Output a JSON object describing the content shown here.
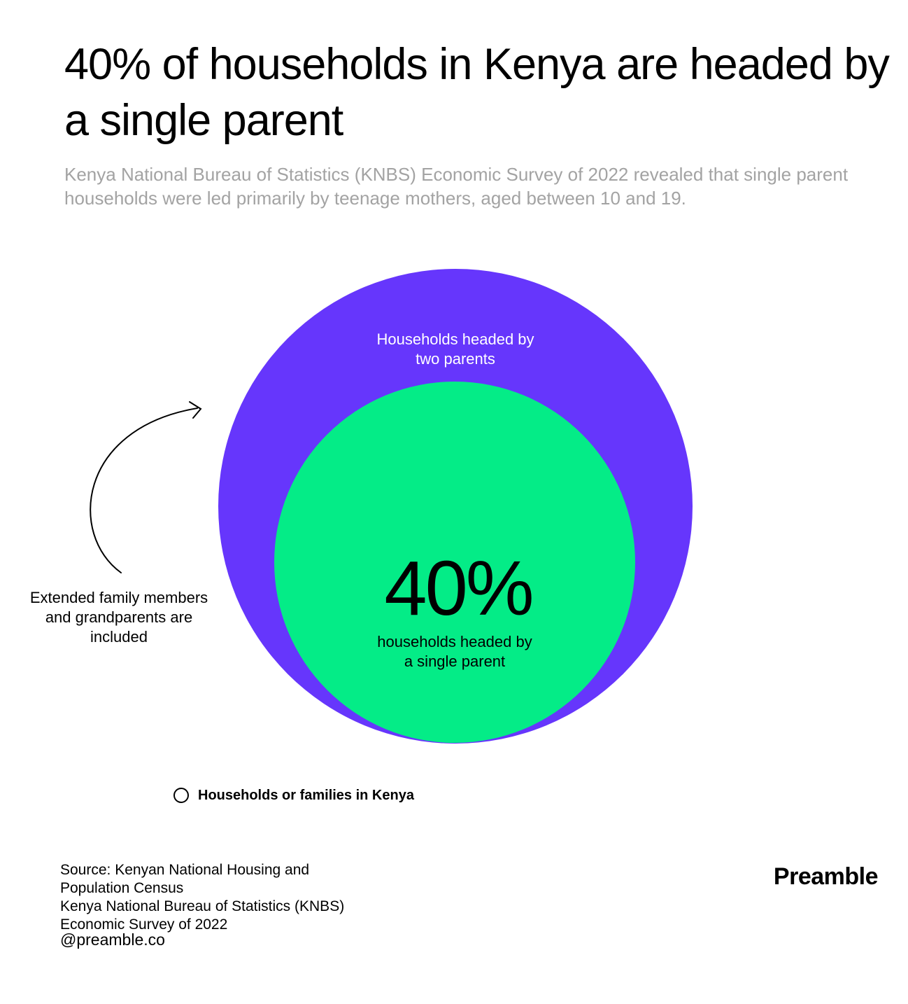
{
  "title": "40% of households in Kenya are headed by a single parent",
  "subtitle": "Kenya National Bureau of Statistics (KNBS) Economic Survey of 2022 revealed that single parent households were led primarily by teenage mothers, aged between 10 and 19.",
  "colors": {
    "outer_circle": "#6636fc",
    "inner_circle": "#04ec87",
    "subtitle_text": "#a3a3a3"
  },
  "chart_data": {
    "type": "nested-circles",
    "circles": [
      {
        "name": "Households headed by two parents",
        "label_lines": [
          "Households headed by",
          "two parents"
        ],
        "color": "#6636fc"
      },
      {
        "name": "households headed by a single parent",
        "label_lines": [
          "households headed by",
          "a single parent"
        ],
        "value_label": "40%",
        "value": 40,
        "color": "#04ec87"
      }
    ],
    "legend": [
      "Households or families in Kenya"
    ]
  },
  "annotation": {
    "lines": [
      "Extended family members",
      "and grandparents are",
      "included"
    ],
    "icon": "curved-arrow-icon"
  },
  "legend_label": "Households or families in Kenya",
  "source_lines": [
    "Source: Kenyan National Housing and",
    "Population Census",
    "Kenya National Bureau of Statistics (KNBS)",
    "Economic Survey of 2022"
  ],
  "handle": "@preamble.co",
  "brand": "Preamble"
}
